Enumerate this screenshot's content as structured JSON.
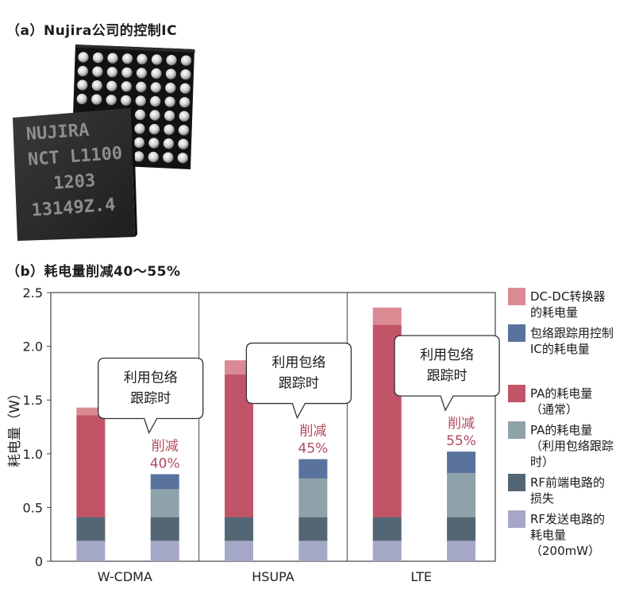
{
  "figure": {
    "heading_a": "（a）Nujira公司的控制IC",
    "heading_b": "（b）耗电量削减40～55%",
    "chip": {
      "marking_lines": [
        "NUJIRA",
        "NCT L1100",
        "1203",
        "13149Z.4"
      ]
    }
  },
  "chart_data": {
    "type": "bar",
    "stacked": true,
    "ylabel": "耗电量（W）",
    "ylim": [
      0,
      2.5
    ],
    "yticks": [
      "0",
      "0.5",
      "1.0",
      "1.5",
      "2.0",
      "2.5"
    ],
    "grid": false,
    "legend_position": "right",
    "groups": [
      {
        "label": "W-CDMA",
        "callout_lines": [
          "利用包络",
          "跟踪时"
        ],
        "reduction_label": "削减",
        "reduction_value": "40%",
        "bars": [
          {
            "segments": {
              "rf_tx": 0.19,
              "rf_frontend": 0.22,
              "pa": 0.95,
              "dcdc": 0.07
            }
          },
          {
            "segments": {
              "rf_tx": 0.19,
              "rf_frontend": 0.22,
              "pa_et": 0.26,
              "et_ic": 0.14
            }
          }
        ]
      },
      {
        "label": "HSUPA",
        "callout_lines": [
          "利用包络",
          "跟踪时"
        ],
        "reduction_label": "削减",
        "reduction_value": "45%",
        "bars": [
          {
            "segments": {
              "rf_tx": 0.19,
              "rf_frontend": 0.22,
              "pa": 1.33,
              "dcdc": 0.13
            }
          },
          {
            "segments": {
              "rf_tx": 0.19,
              "rf_frontend": 0.22,
              "pa_et": 0.36,
              "et_ic": 0.18
            }
          }
        ]
      },
      {
        "label": "LTE",
        "callout_lines": [
          "利用包络",
          "跟踪时"
        ],
        "reduction_label": "削减",
        "reduction_value": "55%",
        "bars": [
          {
            "segments": {
              "rf_tx": 0.19,
              "rf_frontend": 0.22,
              "pa": 1.79,
              "dcdc": 0.16
            }
          },
          {
            "segments": {
              "rf_tx": 0.19,
              "rf_frontend": 0.22,
              "pa_et": 0.41,
              "et_ic": 0.2
            }
          }
        ]
      }
    ],
    "series": [
      {
        "key": "dcdc",
        "name": "DC-DC转换器的耗电量",
        "lines": [
          "DC-DC转换器",
          "的耗电量"
        ],
        "color": "#d98a93"
      },
      {
        "key": "et_ic",
        "name": "包络跟踪用控制IC的耗电量",
        "lines": [
          "包络跟踪用控制",
          "IC的耗电量"
        ],
        "color": "#5a729e"
      },
      {
        "key": "pa",
        "name": "PA的耗电量（通常）",
        "lines": [
          "PA的耗电量",
          "（通常）"
        ],
        "color": "#c25468"
      },
      {
        "key": "pa_et",
        "name": "PA的耗电量（利用包络跟踪时）",
        "lines": [
          "PA的耗电量",
          "（利用包络跟踪",
          "时）"
        ],
        "color": "#8ea3a9"
      },
      {
        "key": "rf_frontend",
        "name": "RF前端电路的损失",
        "lines": [
          "RF前端电路的",
          "损失"
        ],
        "color": "#546674"
      },
      {
        "key": "rf_tx",
        "name": "RF发送电路的耗电量（200mW）",
        "lines": [
          "RF发送电路的",
          "耗电量",
          "（200mW）"
        ],
        "color": "#a4a8c6"
      }
    ],
    "stack_order": [
      "rf_tx",
      "rf_frontend",
      "pa",
      "pa_et",
      "dcdc",
      "et_ic"
    ],
    "reduction_color": "#b04a5c"
  }
}
